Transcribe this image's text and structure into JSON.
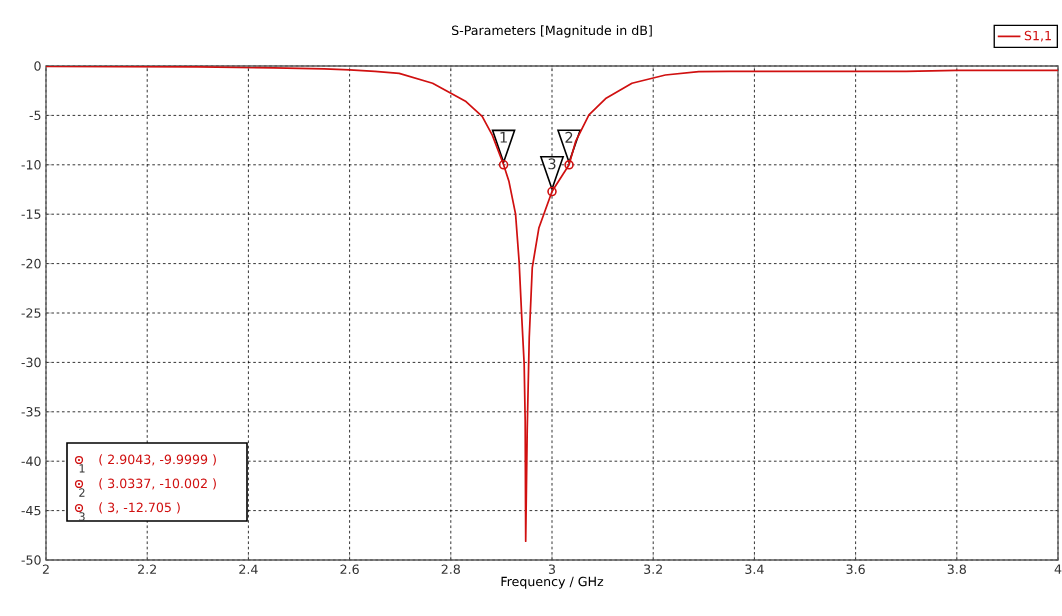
{
  "chart_data": {
    "type": "line",
    "title": "S-Parameters [Magnitude in dB]",
    "xlabel": "Frequency / GHz",
    "xlim": [
      2,
      4
    ],
    "ylim": [
      -50,
      0
    ],
    "xticks": [
      2,
      2.2,
      2.4,
      2.6,
      2.8,
      3,
      3.2,
      3.4,
      3.6,
      3.8,
      4
    ],
    "yticks": [
      0,
      -5,
      -10,
      -15,
      -20,
      -25,
      -30,
      -35,
      -40,
      -45,
      -50
    ],
    "grid": true,
    "legend": "top right",
    "series": [
      {
        "name": "S1,1",
        "color": "#d01010",
        "line_style": "solid",
        "x": [
          2,
          2.3,
          2.45,
          2.55,
          2.6,
          2.65,
          2.698,
          2.764,
          2.83,
          2.862,
          2.882,
          2.9043,
          2.915,
          2.928,
          2.935,
          2.94,
          2.945,
          2.947,
          2.948,
          2.951,
          2.955,
          2.961,
          2.974,
          3,
          3.0337,
          3.047,
          3.073,
          3.106,
          3.158,
          3.224,
          3.29,
          3.35,
          3.5,
          3.7,
          3.75,
          3.8,
          4
        ],
        "values": [
          -0.05,
          -0.1,
          -0.2,
          -0.3,
          -0.4,
          -0.55,
          -0.74,
          -1.75,
          -3.6,
          -5.1,
          -7.0,
          -9.9999,
          -11.7,
          -15.0,
          -19.8,
          -25.2,
          -30.2,
          -35.9,
          -48.1,
          -36.9,
          -27.5,
          -20.4,
          -16.4,
          -12.705,
          -10.002,
          -7.6,
          -4.95,
          -3.3,
          -1.75,
          -0.91,
          -0.57,
          -0.55,
          -0.55,
          -0.55,
          -0.5,
          -0.45,
          -0.45
        ]
      },
      {
        "type": "scatter",
        "color": "#d01010",
        "marker": "circle",
        "x": [
          2.9043,
          3.0337,
          3
        ],
        "values": [
          -9.9999,
          -10.002,
          -12.705
        ]
      }
    ],
    "annotations": [
      {
        "text": "1",
        "x": 2.9043,
        "y": -9.9999
      },
      {
        "text": "2",
        "x": 3.0337,
        "y": -10.002
      },
      {
        "text": "3",
        "x": 3,
        "y": -12.705
      },
      "( 2.9043, -9.9999 )",
      "( 3.0337, -10.002 )",
      "( 3, -12.705 )"
    ]
  }
}
